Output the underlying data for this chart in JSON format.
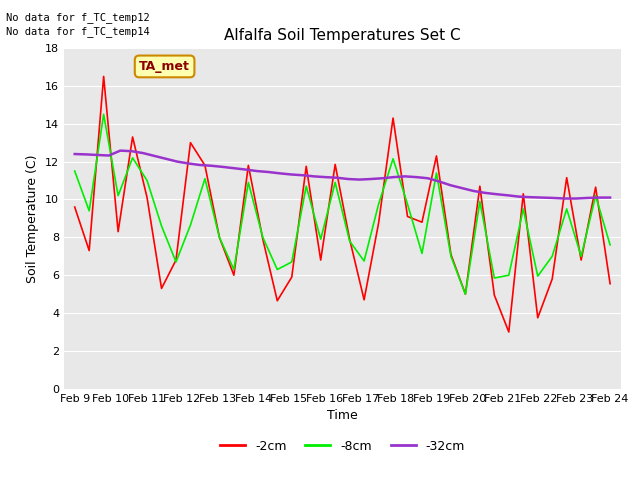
{
  "title": "Alfalfa Soil Temperatures Set C",
  "xlabel": "Time",
  "ylabel": "Soil Temperature (C)",
  "ylim": [
    0,
    18
  ],
  "yticks": [
    0,
    2,
    4,
    6,
    8,
    10,
    12,
    14,
    16,
    18
  ],
  "background_color": "#ffffff",
  "plot_bg_color": "#e8e8e8",
  "annotations": [
    "No data for f_TC_temp12",
    "No data for f_TC_temp14"
  ],
  "legend_box_label": "TA_met",
  "xtick_labels": [
    "Feb 9",
    "Feb 10",
    "Feb 11",
    "Feb 12",
    "Feb 13",
    "Feb 14",
    "Feb 15",
    "Feb 16",
    "Feb 17",
    "Feb 18",
    "Feb 19",
    "Feb 20",
    "Feb 21",
    "Feb 22",
    "Feb 23",
    "Feb 24"
  ],
  "red_line": [
    9.6,
    7.3,
    16.5,
    8.3,
    13.3,
    10.1,
    5.3,
    6.8,
    13.0,
    11.8,
    8.0,
    6.0,
    11.8,
    7.9,
    4.65,
    5.9,
    11.75,
    6.8,
    11.85,
    7.9,
    4.7,
    8.75,
    14.3,
    9.1,
    8.8,
    12.3,
    7.1,
    5.0,
    10.7,
    4.95,
    3.0,
    10.3,
    3.75,
    5.8,
    11.15,
    6.8,
    10.65,
    5.55
  ],
  "green_line": [
    11.5,
    9.4,
    14.5,
    10.2,
    12.2,
    11.0,
    8.6,
    6.7,
    8.65,
    11.1,
    8.0,
    6.3,
    10.9,
    8.0,
    6.3,
    6.7,
    10.7,
    7.9,
    10.9,
    7.8,
    6.75,
    9.75,
    12.15,
    9.75,
    7.15,
    11.4,
    7.0,
    5.0,
    9.9,
    5.85,
    6.0,
    9.5,
    5.95,
    7.0,
    9.5,
    7.0,
    10.2,
    7.6
  ],
  "purple_line": [
    12.4,
    12.38,
    12.35,
    12.32,
    12.58,
    12.55,
    12.45,
    12.3,
    12.15,
    12.0,
    11.9,
    11.82,
    11.78,
    11.72,
    11.65,
    11.58,
    11.5,
    11.45,
    11.38,
    11.32,
    11.28,
    11.22,
    11.18,
    11.15,
    11.08,
    11.05,
    11.08,
    11.12,
    11.18,
    11.22,
    11.18,
    11.12,
    10.95,
    10.75,
    10.6,
    10.45,
    10.35,
    10.28,
    10.22,
    10.15,
    10.12,
    10.1,
    10.08,
    10.05,
    10.05,
    10.08,
    10.1,
    10.1
  ],
  "red_color": "#ff0000",
  "green_color": "#00ee00",
  "purple_color": "#9933cc",
  "legend_labels": [
    "-2cm",
    "-8cm",
    "-32cm"
  ]
}
